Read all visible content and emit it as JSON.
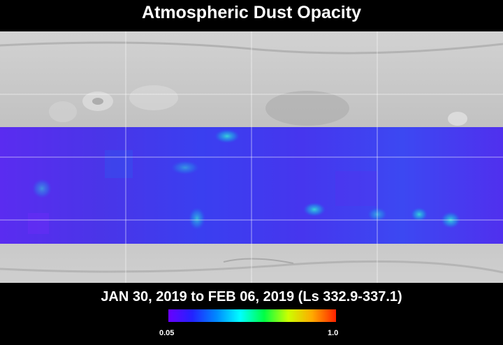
{
  "title": "Atmospheric Dust Opacity",
  "date_range": "JAN 30, 2019 to FEB 06, 2019 (Ls 332.9-337.1)",
  "colorbar": {
    "min_label": "0.05",
    "max_label": "1.0",
    "colors": [
      "#6a00ff",
      "#2222ff",
      "#0088ff",
      "#00ffff",
      "#00ff44",
      "#ccff00",
      "#ffaa00",
      "#ff2200"
    ]
  },
  "map": {
    "base_color": "#c4c4c4",
    "band_color": "#4a3af0"
  }
}
